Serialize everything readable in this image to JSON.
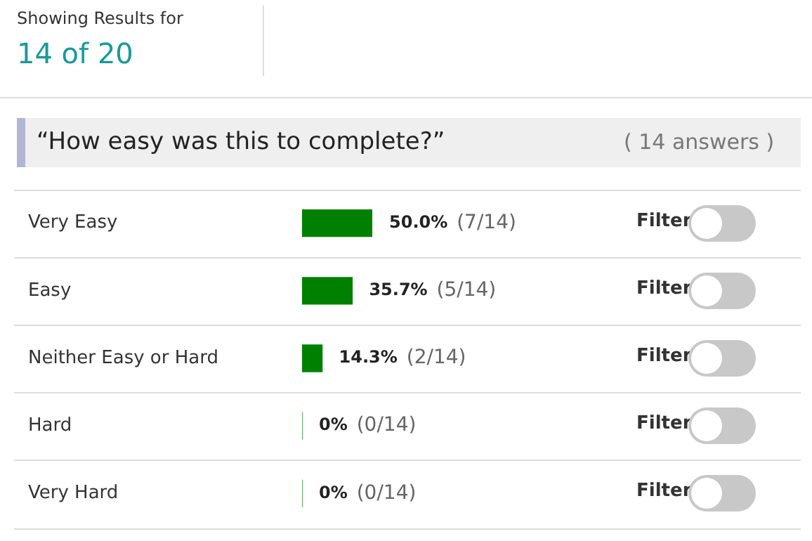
{
  "chart_data": {
    "type": "bar",
    "orientation": "horizontal",
    "title": "“How easy was this to complete?”",
    "categories": [
      "Very Easy",
      "Easy",
      "Neither Easy or Hard",
      "Hard",
      "Very Hard"
    ],
    "values": [
      50.0,
      35.7,
      14.3,
      0,
      0
    ],
    "color": "#008000",
    "tick_labels": "y",
    "legend": false,
    "value_labels": [
      "50.0% (7/14)",
      "35.7% (5/14)",
      "14.3% (2/14)",
      "0% (0/14)",
      "0% (0/14)"
    ],
    "annotations": [
      "Showing Results for",
      "14 of 20",
      "( 14 answers )",
      "Filter"
    ]
  }
}
